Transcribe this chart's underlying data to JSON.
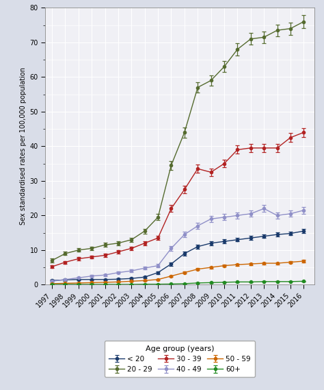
{
  "years": [
    1997,
    1998,
    1999,
    2000,
    2001,
    2002,
    2003,
    2004,
    2005,
    2006,
    2007,
    2008,
    2009,
    2010,
    2011,
    2012,
    2013,
    2014,
    2015,
    2016
  ],
  "series_order": [
    "< 20",
    "20 - 29",
    "30 - 39",
    "40 - 49",
    "50 - 59",
    "60+"
  ],
  "series": {
    "< 20": {
      "color": "#1a3a6b",
      "values": [
        1.2,
        1.4,
        1.5,
        1.5,
        1.5,
        1.6,
        1.8,
        2.2,
        3.5,
        6.0,
        9.0,
        11.0,
        12.0,
        12.5,
        13.0,
        13.5,
        14.0,
        14.5,
        14.8,
        15.5
      ],
      "errors": [
        0.25,
        0.25,
        0.25,
        0.25,
        0.25,
        0.25,
        0.3,
        0.3,
        0.4,
        0.5,
        0.55,
        0.55,
        0.55,
        0.55,
        0.55,
        0.55,
        0.55,
        0.55,
        0.55,
        0.6
      ]
    },
    "20 - 29": {
      "color": "#556b2f",
      "values": [
        7.0,
        9.0,
        10.0,
        10.5,
        11.5,
        12.0,
        13.0,
        15.5,
        19.5,
        34.5,
        44.0,
        57.0,
        59.0,
        63.0,
        68.0,
        71.0,
        71.5,
        73.5,
        74.0,
        76.0
      ],
      "errors": [
        0.5,
        0.5,
        0.5,
        0.5,
        0.6,
        0.6,
        0.6,
        0.7,
        0.9,
        1.3,
        1.5,
        1.5,
        1.5,
        1.6,
        1.7,
        1.7,
        1.7,
        1.7,
        1.8,
        1.8
      ]
    },
    "30 - 39": {
      "color": "#b22222",
      "values": [
        5.2,
        6.5,
        7.5,
        8.0,
        8.5,
        9.5,
        10.5,
        12.0,
        13.5,
        22.0,
        27.5,
        33.5,
        32.5,
        35.0,
        39.0,
        39.5,
        39.5,
        39.5,
        42.5,
        44.0
      ],
      "errors": [
        0.4,
        0.4,
        0.4,
        0.4,
        0.45,
        0.5,
        0.5,
        0.55,
        0.6,
        1.0,
        1.1,
        1.2,
        1.1,
        1.1,
        1.2,
        1.2,
        1.2,
        1.2,
        1.3,
        1.3
      ]
    },
    "40 - 49": {
      "color": "#9090c8",
      "values": [
        1.0,
        1.5,
        2.0,
        2.5,
        2.8,
        3.5,
        4.0,
        4.8,
        5.5,
        10.5,
        14.5,
        17.0,
        19.0,
        19.5,
        20.0,
        20.5,
        22.0,
        20.0,
        20.5,
        21.5
      ],
      "errors": [
        0.2,
        0.2,
        0.25,
        0.25,
        0.3,
        0.3,
        0.35,
        0.4,
        0.45,
        0.75,
        0.85,
        0.9,
        0.9,
        0.9,
        0.9,
        0.9,
        1.0,
        0.9,
        0.9,
        1.0
      ]
    },
    "50 - 59": {
      "color": "#cc6600",
      "values": [
        0.3,
        0.4,
        0.5,
        0.6,
        0.7,
        0.8,
        1.0,
        1.2,
        1.5,
        2.5,
        3.5,
        4.5,
        5.0,
        5.5,
        5.8,
        6.0,
        6.2,
        6.2,
        6.5,
        6.8
      ],
      "errors": [
        0.08,
        0.08,
        0.1,
        0.1,
        0.1,
        0.1,
        0.12,
        0.12,
        0.15,
        0.22,
        0.28,
        0.3,
        0.3,
        0.3,
        0.3,
        0.3,
        0.3,
        0.3,
        0.32,
        0.32
      ]
    },
    "60+": {
      "color": "#228b22",
      "values": [
        0.1,
        0.1,
        0.1,
        0.1,
        0.1,
        0.1,
        0.1,
        0.15,
        0.15,
        0.2,
        0.3,
        0.5,
        0.6,
        0.7,
        0.8,
        0.8,
        0.9,
        0.9,
        0.9,
        1.0
      ],
      "errors": [
        0.04,
        0.04,
        0.04,
        0.04,
        0.04,
        0.04,
        0.04,
        0.05,
        0.05,
        0.05,
        0.07,
        0.08,
        0.08,
        0.08,
        0.09,
        0.09,
        0.09,
        0.09,
        0.09,
        0.1
      ]
    }
  },
  "ylabel": "Sex standardised rates per 100,000 population",
  "ylim": [
    0,
    80
  ],
  "yticks_major": [
    0,
    10,
    20,
    30,
    40,
    50,
    60,
    70,
    80
  ],
  "yticks_minor": [
    5,
    15,
    25,
    35,
    45,
    55,
    65,
    75
  ],
  "legend_title": "Age group (years)",
  "background_color": "#d9dde8",
  "plot_background": "#f0f0f5",
  "grid_color": "#ffffff",
  "legend_col1": [
    "< 20",
    "40 - 49"
  ],
  "legend_col2": [
    "20 - 29",
    "50 - 59"
  ],
  "legend_col3": [
    "30 - 39",
    "60+"
  ]
}
